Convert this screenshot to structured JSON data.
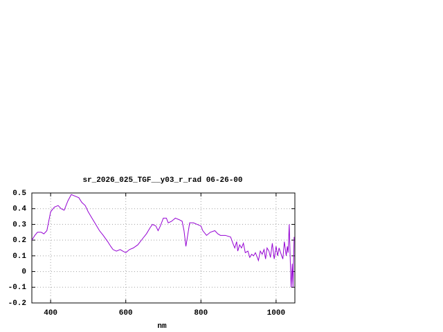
{
  "chart_data": {
    "type": "line",
    "title": "sr_2026_025_TGF__y03_r_rad 06-26-00",
    "x_label": "nm",
    "x": [
      350,
      358,
      365,
      375,
      382,
      390,
      395,
      400,
      410,
      420,
      428,
      436,
      446,
      455,
      465,
      475,
      483,
      492,
      500,
      510,
      520,
      530,
      540,
      552,
      560,
      566,
      575,
      585,
      592,
      600,
      610,
      620,
      632,
      645,
      655,
      665,
      671,
      680,
      686,
      692,
      700,
      708,
      713,
      722,
      732,
      742,
      750,
      755,
      760,
      764,
      770,
      780,
      790,
      800,
      805,
      815,
      825,
      837,
      845,
      852,
      865,
      879,
      885,
      890,
      895,
      898,
      903,
      908,
      913,
      918,
      925,
      930,
      935,
      940,
      945,
      950,
      953,
      958,
      963,
      968,
      972,
      976,
      981,
      985,
      990,
      995,
      1000,
      1004,
      1008,
      1012,
      1018,
      1022,
      1027,
      1030,
      1032,
      1035,
      1038,
      1040,
      1043,
      1045,
      1048
    ],
    "series": [
      {
        "name": "sr_2026_025_TGF__y03_r_rad",
        "color": "#9400d3",
        "values": [
          0.2,
          0.23,
          0.25,
          0.25,
          0.24,
          0.26,
          0.32,
          0.38,
          0.41,
          0.42,
          0.4,
          0.39,
          0.45,
          0.49,
          0.48,
          0.47,
          0.44,
          0.42,
          0.38,
          0.34,
          0.3,
          0.26,
          0.23,
          0.19,
          0.16,
          0.14,
          0.13,
          0.14,
          0.13,
          0.12,
          0.14,
          0.15,
          0.17,
          0.21,
          0.24,
          0.28,
          0.3,
          0.29,
          0.26,
          0.29,
          0.34,
          0.34,
          0.31,
          0.32,
          0.34,
          0.33,
          0.32,
          0.26,
          0.16,
          0.22,
          0.31,
          0.31,
          0.3,
          0.29,
          0.26,
          0.23,
          0.25,
          0.26,
          0.24,
          0.23,
          0.23,
          0.22,
          0.18,
          0.15,
          0.19,
          0.13,
          0.17,
          0.15,
          0.18,
          0.12,
          0.13,
          0.09,
          0.11,
          0.1,
          0.12,
          0.09,
          0.07,
          0.13,
          0.11,
          0.14,
          0.08,
          0.15,
          0.13,
          0.09,
          0.18,
          0.08,
          0.16,
          0.1,
          0.15,
          0.12,
          0.08,
          0.19,
          0.1,
          0.16,
          0.12,
          0.3,
          0.05,
          -0.1,
          0.05,
          -0.1,
          0.22
        ]
      }
    ],
    "xlim": [
      350,
      1050
    ],
    "ylim": [
      -0.2,
      0.5
    ],
    "xticks": [
      400,
      600,
      800,
      1000
    ],
    "yticks": [
      0.5,
      0.4,
      0.3,
      0.2,
      0.1,
      0,
      -0.1,
      -0.2
    ],
    "grid": true
  }
}
